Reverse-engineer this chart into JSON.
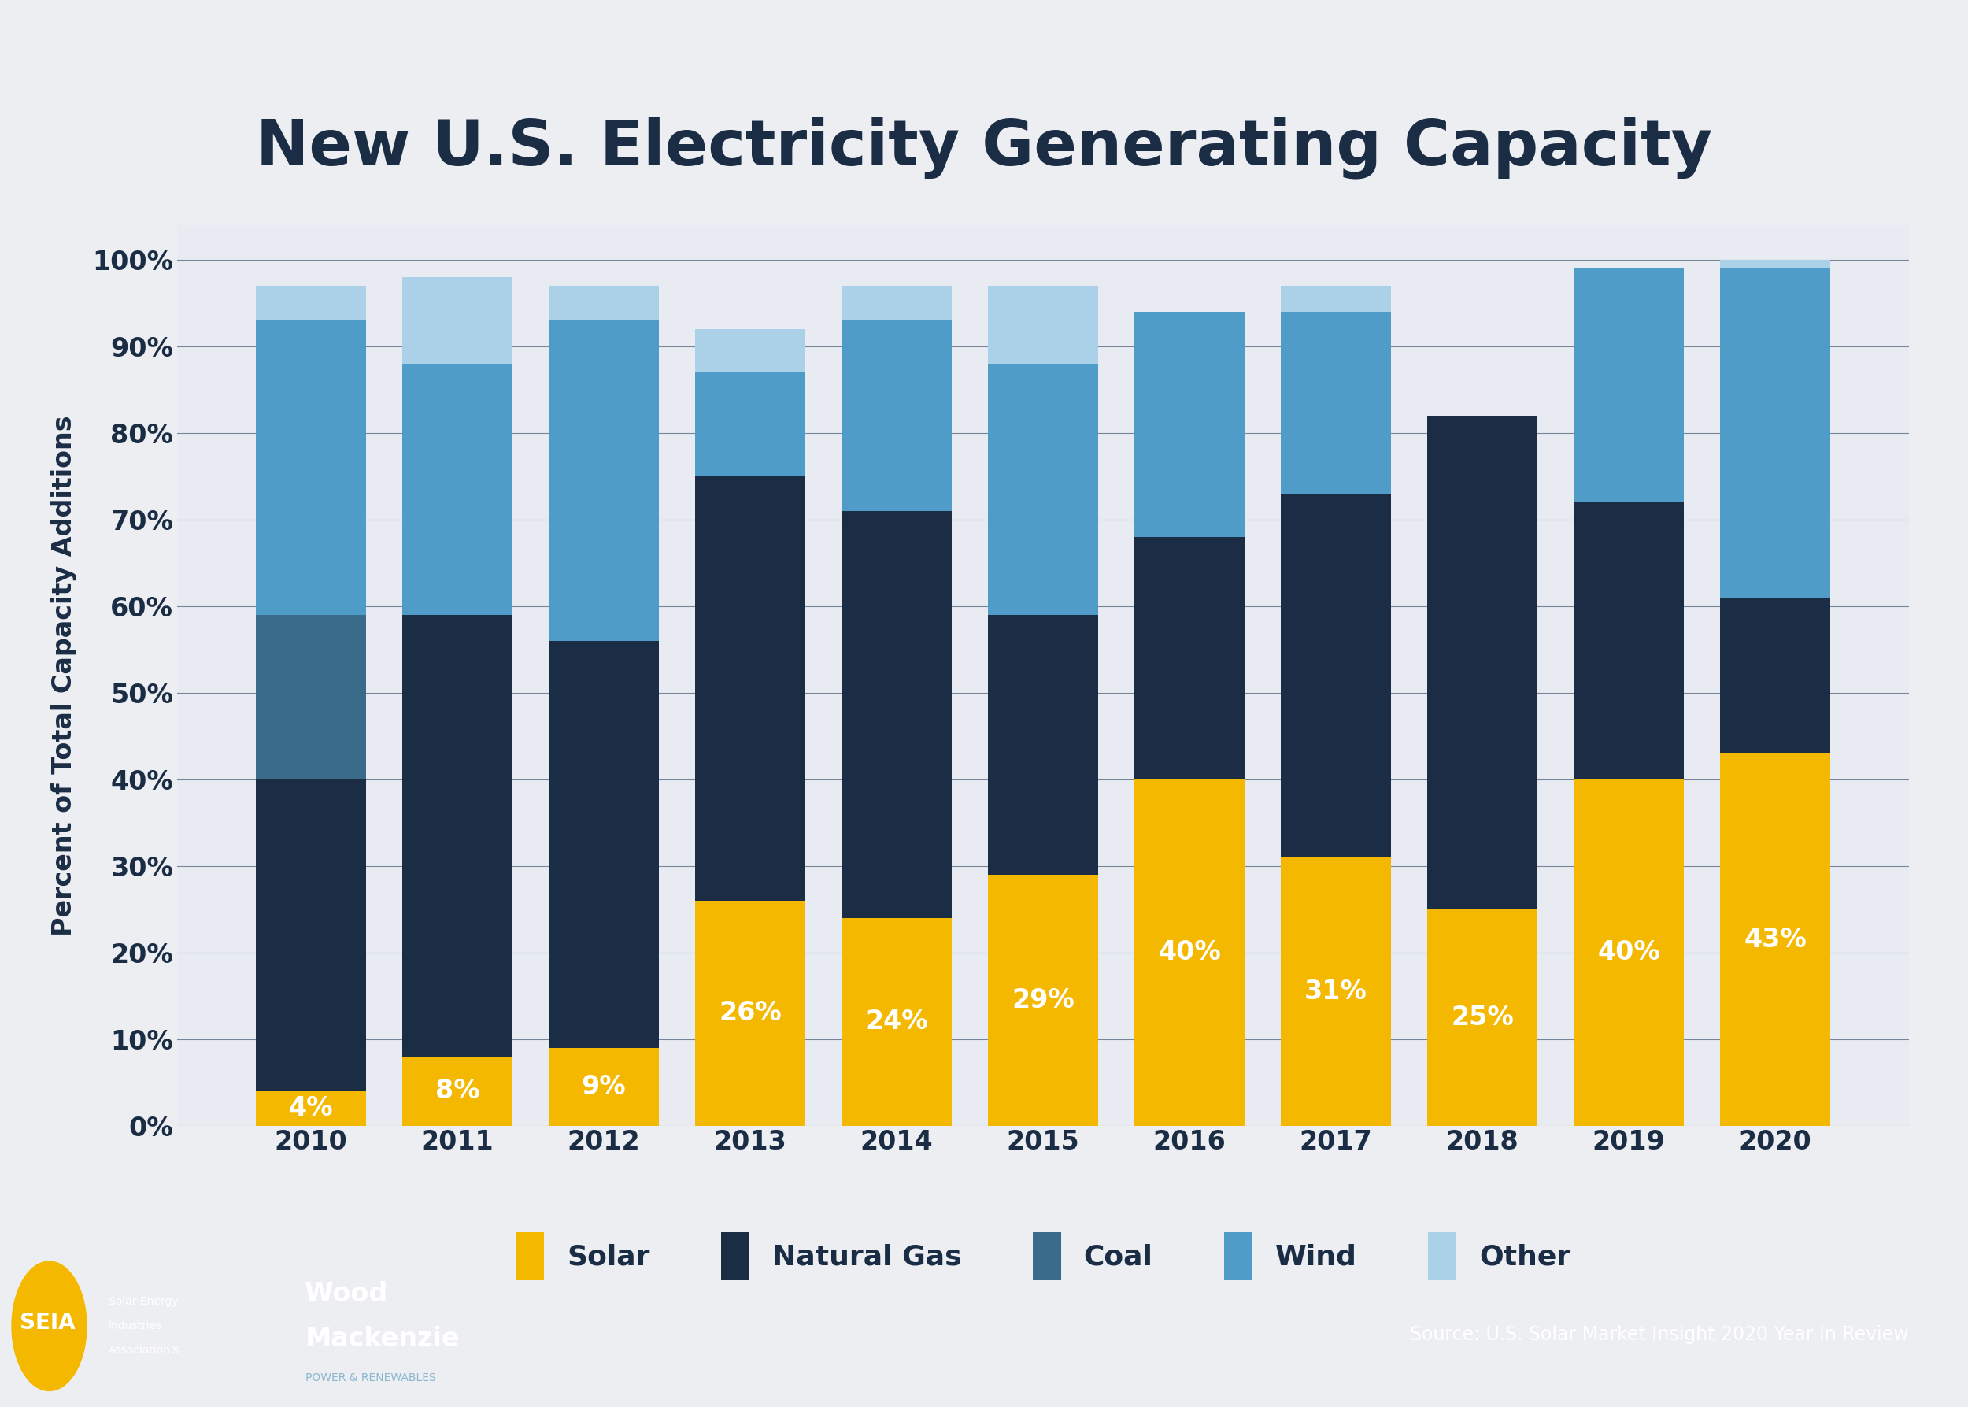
{
  "title": "New U.S. Electricity Generating Capacity",
  "ylabel": "Percent of Total Capacity Additions",
  "years": [
    2010,
    2011,
    2012,
    2013,
    2014,
    2015,
    2016,
    2017,
    2018,
    2019,
    2020
  ],
  "solar": [
    4,
    8,
    9,
    26,
    24,
    29,
    40,
    31,
    25,
    40,
    43
  ],
  "natural_gas": [
    36,
    51,
    47,
    49,
    47,
    30,
    28,
    42,
    57,
    32,
    18
  ],
  "coal": [
    19,
    0,
    0,
    0,
    0,
    0,
    0,
    0,
    0,
    0,
    0
  ],
  "wind": [
    34,
    29,
    37,
    12,
    22,
    29,
    26,
    21,
    0,
    27,
    38
  ],
  "other": [
    4,
    10,
    4,
    5,
    4,
    9,
    0,
    3,
    0,
    0,
    1
  ],
  "solar_labels": [
    "4%",
    "8%",
    "9%",
    "26%",
    "24%",
    "29%",
    "40%",
    "31%",
    "25%",
    "40%",
    "43%"
  ],
  "colors": {
    "solar": "#F5B800",
    "natural_gas": "#1B2D45",
    "coal": "#3A6B8A",
    "wind": "#4F9CC9",
    "other": "#AAD1E8"
  },
  "background_color": "#ECEEF2",
  "plot_bg_color": "#E8ECF2",
  "title_color": "#1B2D45",
  "label_color_solar": "#FFFFFF",
  "ylim": [
    0,
    104
  ],
  "yticks": [
    0,
    10,
    20,
    30,
    40,
    50,
    60,
    70,
    80,
    90,
    100
  ],
  "ytick_labels": [
    "0%",
    "10%",
    "20%",
    "30%",
    "40%",
    "50%",
    "60%",
    "70%",
    "80%",
    "90%",
    "100%"
  ],
  "footer_color": "#1B3A5C",
  "footer_text": "Source: U.S. Solar Market Insight 2020 Year in Review",
  "legend_labels": [
    "Solar",
    "Natural Gas",
    "Coal",
    "Wind",
    "Other"
  ],
  "title_fontsize": 58,
  "axis_label_fontsize": 24,
  "tick_fontsize": 24,
  "legend_fontsize": 26,
  "bar_label_fontsize": 24
}
